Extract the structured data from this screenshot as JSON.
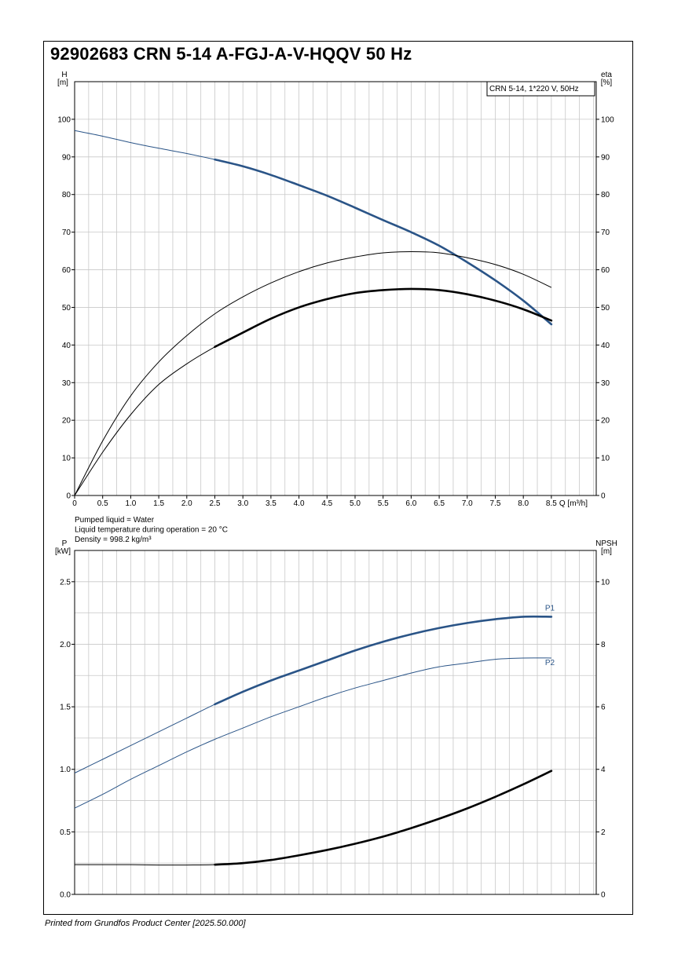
{
  "title": "92902683 CRN 5-14 A-FGJ-A-V-HQQV 50 Hz",
  "footer": "Printed from Grundfos Product Center [2025.50.000]",
  "colors": {
    "blue": "#2a5487",
    "black": "#000000",
    "grid": "#c8c8c8"
  },
  "chart_data": [
    {
      "type": "line",
      "id": "head-efficiency",
      "legend_box": "CRN 5-14, 1*220 V, 50Hz",
      "legend_position": "top-right",
      "xlabel": "Q [m³/h]",
      "ylabel_left": {
        "line1": "H",
        "line2": "[m]"
      },
      "ylabel_right": {
        "line1": "eta",
        "line2": "[%]"
      },
      "xlim": [
        0,
        9.3
      ],
      "ylim": [
        0,
        110
      ],
      "xticks": [
        "0",
        "0.5",
        "1.0",
        "1.5",
        "2.0",
        "2.5",
        "3.0",
        "3.5",
        "4.0",
        "4.5",
        "5.0",
        "5.5",
        "6.0",
        "6.5",
        "7.0",
        "7.5",
        "8.0",
        "8.5"
      ],
      "yticks_left": [
        "0",
        "10",
        "20",
        "30",
        "40",
        "50",
        "60",
        "70",
        "80",
        "90",
        "100"
      ],
      "yticks_right": [
        "0",
        "10",
        "20",
        "30",
        "40",
        "50",
        "60",
        "70",
        "80",
        "90",
        "100"
      ],
      "grid": true,
      "notes": [
        "Pumped liquid = Water",
        "Liquid temperature during operation = 20 °C",
        "Density = 998.2 kg/m³"
      ],
      "series": [
        {
          "id": "H",
          "color": "#2a5487",
          "thick_from": 2.5,
          "x": [
            0,
            0.5,
            1.0,
            1.5,
            2.0,
            2.5,
            3.0,
            3.5,
            4.0,
            4.5,
            5.0,
            5.5,
            6.0,
            6.5,
            7.0,
            7.5,
            8.0,
            8.5
          ],
          "y": [
            97.0,
            95.5,
            93.8,
            92.3,
            90.9,
            89.3,
            87.5,
            85.2,
            82.5,
            79.7,
            76.5,
            73.2,
            70.0,
            66.4,
            62.0,
            57.2,
            51.8,
            45.5
          ]
        },
        {
          "id": "eta_motor",
          "color": "#000000",
          "thick_from": 9,
          "x": [
            0,
            0.5,
            1.0,
            1.5,
            2.0,
            2.5,
            3.0,
            3.5,
            4.0,
            4.5,
            5.0,
            5.5,
            6.0,
            6.5,
            7.0,
            7.5,
            8.0,
            8.5
          ],
          "y": [
            0,
            14.5,
            26.5,
            35.5,
            42.5,
            48.3,
            52.8,
            56.5,
            59.5,
            61.8,
            63.4,
            64.5,
            64.8,
            64.5,
            63.2,
            61.4,
            58.8,
            55.3
          ]
        },
        {
          "id": "eta_pump",
          "color": "#000000",
          "thick_from": 2.5,
          "x": [
            0,
            0.5,
            1.0,
            1.5,
            2.0,
            2.5,
            3.0,
            3.5,
            4.0,
            4.5,
            5.0,
            5.5,
            6.0,
            6.5,
            7.0,
            7.5,
            8.0,
            8.5
          ],
          "y": [
            0,
            11.5,
            21.5,
            29.5,
            35.0,
            39.5,
            43.3,
            47.0,
            50.0,
            52.2,
            53.8,
            54.6,
            54.9,
            54.6,
            53.5,
            51.8,
            49.5,
            46.5
          ]
        }
      ]
    },
    {
      "type": "line",
      "id": "power-npsh",
      "xlim": [
        0,
        9.3
      ],
      "ylim": [
        0,
        2.75
      ],
      "ylim_right": [
        0,
        11
      ],
      "ylabel_left": {
        "line1": "P",
        "line2": "[kW]"
      },
      "ylabel_right": {
        "line1": "NPSH",
        "line2": "[m]"
      },
      "yticks_left": [
        "0.0",
        "0.5",
        "1.0",
        "1.5",
        "2.0",
        "2.5"
      ],
      "yticks_right": [
        "0",
        "2",
        "4",
        "6",
        "8",
        "10"
      ],
      "grid": true,
      "series": [
        {
          "id": "P1",
          "name": "P1",
          "color": "#2a5487",
          "thick_from": 2.5,
          "axis": "left",
          "x": [
            0,
            0.5,
            1.0,
            1.5,
            2.0,
            2.5,
            3.0,
            3.5,
            4.0,
            4.5,
            5.0,
            5.5,
            6.0,
            6.5,
            7.0,
            7.5,
            8.0,
            8.5
          ],
          "y": [
            0.97,
            1.08,
            1.19,
            1.3,
            1.41,
            1.52,
            1.62,
            1.71,
            1.79,
            1.87,
            1.95,
            2.02,
            2.08,
            2.13,
            2.17,
            2.2,
            2.22,
            2.22
          ]
        },
        {
          "id": "P2",
          "name": "P2",
          "color": "#2a5487",
          "thick_from": 9,
          "axis": "left",
          "x": [
            0,
            0.5,
            1.0,
            1.5,
            2.0,
            2.5,
            3.0,
            3.5,
            4.0,
            4.5,
            5.0,
            5.5,
            6.0,
            6.5,
            7.0,
            7.5,
            8.0,
            8.5
          ],
          "y": [
            0.69,
            0.8,
            0.92,
            1.03,
            1.14,
            1.24,
            1.33,
            1.42,
            1.5,
            1.58,
            1.65,
            1.71,
            1.77,
            1.82,
            1.85,
            1.88,
            1.89,
            1.89
          ]
        },
        {
          "id": "NPSH",
          "color": "#000000",
          "thick_from": 2.5,
          "axis": "right",
          "x": [
            0,
            0.5,
            1.0,
            1.5,
            2.0,
            2.5,
            3.0,
            3.5,
            4.0,
            4.5,
            5.0,
            5.5,
            6.0,
            6.5,
            7.0,
            7.5,
            8.0,
            8.5
          ],
          "y": [
            0.95,
            0.95,
            0.95,
            0.94,
            0.94,
            0.95,
            1.0,
            1.1,
            1.25,
            1.42,
            1.62,
            1.85,
            2.12,
            2.42,
            2.75,
            3.12,
            3.52,
            3.95
          ]
        }
      ]
    }
  ]
}
